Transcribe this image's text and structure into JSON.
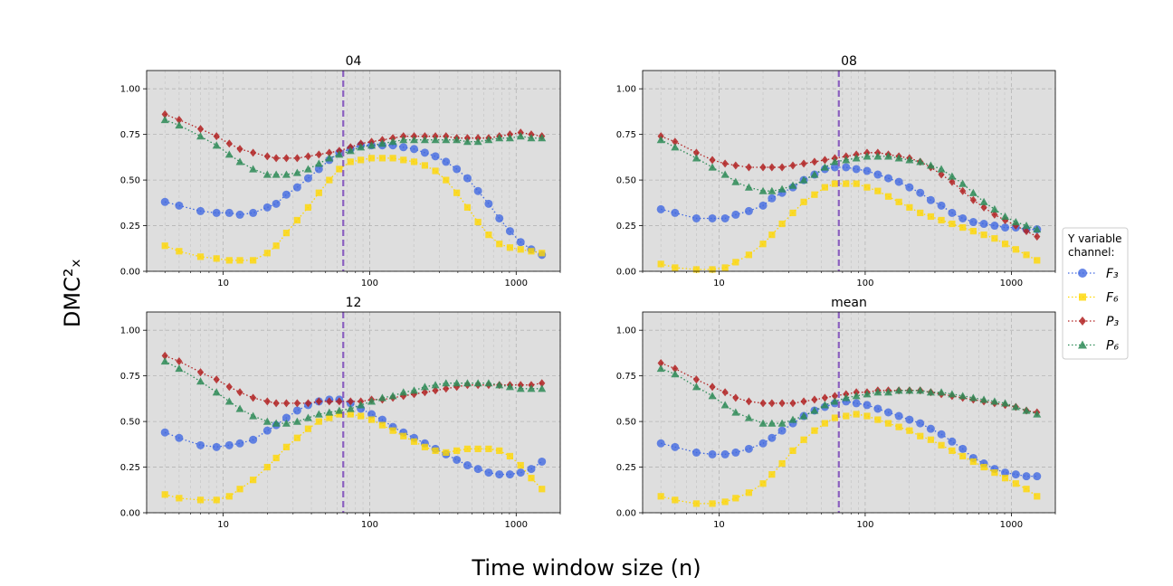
{
  "figure": {
    "supxlabel": "Time window size (n)",
    "supylabel": "DMC²ₓ"
  },
  "legend": {
    "title_line1": "Y variable",
    "title_line2": "channel:",
    "entries": [
      {
        "label": "F₃",
        "color": "#4169E1",
        "marker": "circle"
      },
      {
        "label": "F₆",
        "color": "#FFD700",
        "marker": "square"
      },
      {
        "label": "P₃",
        "color": "#B22222",
        "marker": "diamond"
      },
      {
        "label": "P₆",
        "color": "#2E8B57",
        "marker": "triangle"
      }
    ]
  },
  "chart_data": {
    "type": "line",
    "x_scale": "log",
    "xlim": [
      3,
      2000
    ],
    "ylim": [
      0,
      1.1
    ],
    "x_ticks": [
      10,
      100,
      1000
    ],
    "x_tick_labels": [
      "10",
      "100",
      "1000"
    ],
    "y_ticks": [
      0,
      0.25,
      0.5,
      0.75,
      1.0
    ],
    "y_tick_labels": [
      "0.00",
      "0.25",
      "0.50",
      "0.75",
      "1.00"
    ],
    "grid": true,
    "vline_x": 66,
    "vline_color": "#8B5FBF",
    "x": [
      4,
      5,
      7,
      9,
      11,
      13,
      16,
      20,
      23,
      27,
      32,
      38,
      45,
      53,
      62,
      74,
      87,
      103,
      122,
      144,
      170,
      201,
      238,
      281,
      332,
      393,
      465,
      549,
      649,
      768,
      907,
      1073,
      1268,
      1499
    ],
    "subplots": [
      {
        "title": "04",
        "series": [
          {
            "name": "F3",
            "values": [
              0.38,
              0.36,
              0.33,
              0.32,
              0.32,
              0.31,
              0.32,
              0.35,
              0.37,
              0.42,
              0.46,
              0.51,
              0.56,
              0.61,
              0.65,
              0.67,
              0.69,
              0.69,
              0.69,
              0.69,
              0.68,
              0.67,
              0.65,
              0.63,
              0.6,
              0.56,
              0.51,
              0.44,
              0.37,
              0.29,
              0.22,
              0.16,
              0.12,
              0.09
            ]
          },
          {
            "name": "F6",
            "values": [
              0.14,
              0.11,
              0.08,
              0.07,
              0.06,
              0.06,
              0.06,
              0.1,
              0.14,
              0.21,
              0.28,
              0.35,
              0.43,
              0.5,
              0.56,
              0.6,
              0.61,
              0.62,
              0.62,
              0.62,
              0.61,
              0.6,
              0.58,
              0.55,
              0.5,
              0.43,
              0.35,
              0.27,
              0.2,
              0.15,
              0.13,
              0.12,
              0.11,
              0.1
            ]
          },
          {
            "name": "P3",
            "values": [
              0.86,
              0.83,
              0.78,
              0.74,
              0.7,
              0.67,
              0.65,
              0.63,
              0.62,
              0.62,
              0.62,
              0.63,
              0.64,
              0.65,
              0.66,
              0.68,
              0.7,
              0.71,
              0.72,
              0.73,
              0.74,
              0.74,
              0.74,
              0.74,
              0.74,
              0.73,
              0.73,
              0.73,
              0.73,
              0.74,
              0.75,
              0.76,
              0.75,
              0.74
            ]
          },
          {
            "name": "P6",
            "values": [
              0.83,
              0.8,
              0.74,
              0.69,
              0.64,
              0.6,
              0.56,
              0.53,
              0.53,
              0.53,
              0.54,
              0.56,
              0.59,
              0.62,
              0.64,
              0.66,
              0.68,
              0.69,
              0.7,
              0.71,
              0.72,
              0.72,
              0.72,
              0.72,
              0.72,
              0.72,
              0.71,
              0.71,
              0.72,
              0.73,
              0.73,
              0.74,
              0.73,
              0.73
            ]
          }
        ]
      },
      {
        "title": "08",
        "series": [
          {
            "name": "F3",
            "values": [
              0.34,
              0.32,
              0.29,
              0.29,
              0.29,
              0.31,
              0.33,
              0.36,
              0.4,
              0.43,
              0.46,
              0.5,
              0.53,
              0.56,
              0.57,
              0.57,
              0.56,
              0.55,
              0.53,
              0.51,
              0.49,
              0.46,
              0.43,
              0.39,
              0.36,
              0.32,
              0.29,
              0.27,
              0.26,
              0.25,
              0.24,
              0.24,
              0.23,
              0.23
            ]
          },
          {
            "name": "F6",
            "values": [
              0.04,
              0.02,
              0.01,
              0.01,
              0.02,
              0.05,
              0.09,
              0.15,
              0.2,
              0.26,
              0.32,
              0.38,
              0.42,
              0.46,
              0.48,
              0.48,
              0.48,
              0.46,
              0.44,
              0.41,
              0.38,
              0.35,
              0.32,
              0.3,
              0.28,
              0.26,
              0.24,
              0.22,
              0.2,
              0.18,
              0.15,
              0.12,
              0.09,
              0.06
            ]
          },
          {
            "name": "P3",
            "values": [
              0.74,
              0.71,
              0.65,
              0.61,
              0.59,
              0.58,
              0.57,
              0.57,
              0.57,
              0.57,
              0.58,
              0.59,
              0.6,
              0.61,
              0.62,
              0.63,
              0.64,
              0.65,
              0.65,
              0.64,
              0.63,
              0.62,
              0.6,
              0.57,
              0.53,
              0.49,
              0.44,
              0.39,
              0.35,
              0.31,
              0.28,
              0.25,
              0.22,
              0.19
            ]
          },
          {
            "name": "P6",
            "values": [
              0.72,
              0.68,
              0.62,
              0.57,
              0.53,
              0.49,
              0.46,
              0.44,
              0.44,
              0.45,
              0.47,
              0.5,
              0.53,
              0.57,
              0.6,
              0.61,
              0.62,
              0.63,
              0.63,
              0.63,
              0.62,
              0.61,
              0.6,
              0.58,
              0.56,
              0.52,
              0.48,
              0.43,
              0.38,
              0.34,
              0.3,
              0.27,
              0.25,
              0.23
            ]
          }
        ]
      },
      {
        "title": "12",
        "series": [
          {
            "name": "F3",
            "values": [
              0.44,
              0.41,
              0.37,
              0.36,
              0.37,
              0.38,
              0.4,
              0.45,
              0.48,
              0.52,
              0.56,
              0.59,
              0.61,
              0.62,
              0.62,
              0.6,
              0.57,
              0.54,
              0.51,
              0.47,
              0.44,
              0.41,
              0.38,
              0.35,
              0.32,
              0.29,
              0.26,
              0.24,
              0.22,
              0.21,
              0.21,
              0.22,
              0.24,
              0.28
            ]
          },
          {
            "name": "F6",
            "values": [
              0.1,
              0.08,
              0.07,
              0.07,
              0.09,
              0.13,
              0.18,
              0.25,
              0.3,
              0.36,
              0.41,
              0.46,
              0.5,
              0.52,
              0.54,
              0.54,
              0.53,
              0.51,
              0.48,
              0.45,
              0.42,
              0.39,
              0.36,
              0.34,
              0.33,
              0.34,
              0.35,
              0.35,
              0.35,
              0.34,
              0.31,
              0.26,
              0.19,
              0.13
            ]
          },
          {
            "name": "P3",
            "values": [
              0.86,
              0.83,
              0.77,
              0.73,
              0.69,
              0.66,
              0.63,
              0.61,
              0.6,
              0.6,
              0.6,
              0.6,
              0.61,
              0.61,
              0.61,
              0.61,
              0.61,
              0.62,
              0.62,
              0.63,
              0.64,
              0.65,
              0.66,
              0.67,
              0.68,
              0.69,
              0.7,
              0.7,
              0.7,
              0.7,
              0.7,
              0.7,
              0.7,
              0.71
            ]
          },
          {
            "name": "P6",
            "values": [
              0.83,
              0.79,
              0.72,
              0.66,
              0.61,
              0.57,
              0.53,
              0.5,
              0.49,
              0.49,
              0.5,
              0.52,
              0.54,
              0.55,
              0.56,
              0.57,
              0.59,
              0.61,
              0.63,
              0.64,
              0.66,
              0.67,
              0.69,
              0.7,
              0.71,
              0.71,
              0.71,
              0.71,
              0.71,
              0.7,
              0.69,
              0.68,
              0.68,
              0.68
            ]
          }
        ]
      },
      {
        "title": "mean",
        "series": [
          {
            "name": "F3",
            "values": [
              0.38,
              0.36,
              0.33,
              0.32,
              0.32,
              0.33,
              0.35,
              0.38,
              0.41,
              0.45,
              0.49,
              0.53,
              0.56,
              0.58,
              0.6,
              0.61,
              0.6,
              0.59,
              0.57,
              0.55,
              0.53,
              0.51,
              0.49,
              0.46,
              0.43,
              0.39,
              0.35,
              0.3,
              0.27,
              0.24,
              0.22,
              0.21,
              0.2,
              0.2
            ]
          },
          {
            "name": "F6",
            "values": [
              0.09,
              0.07,
              0.05,
              0.05,
              0.06,
              0.08,
              0.11,
              0.16,
              0.21,
              0.27,
              0.34,
              0.4,
              0.45,
              0.49,
              0.52,
              0.53,
              0.54,
              0.53,
              0.51,
              0.49,
              0.47,
              0.45,
              0.42,
              0.4,
              0.37,
              0.34,
              0.31,
              0.28,
              0.25,
              0.22,
              0.19,
              0.16,
              0.13,
              0.09
            ]
          },
          {
            "name": "P3",
            "values": [
              0.82,
              0.79,
              0.73,
              0.69,
              0.66,
              0.63,
              0.61,
              0.6,
              0.6,
              0.6,
              0.6,
              0.61,
              0.62,
              0.63,
              0.64,
              0.65,
              0.66,
              0.66,
              0.67,
              0.67,
              0.67,
              0.67,
              0.67,
              0.66,
              0.65,
              0.64,
              0.63,
              0.62,
              0.61,
              0.6,
              0.59,
              0.58,
              0.56,
              0.55
            ]
          },
          {
            "name": "P6",
            "values": [
              0.79,
              0.76,
              0.69,
              0.64,
              0.59,
              0.55,
              0.52,
              0.49,
              0.49,
              0.49,
              0.51,
              0.53,
              0.56,
              0.59,
              0.61,
              0.63,
              0.64,
              0.65,
              0.66,
              0.66,
              0.67,
              0.67,
              0.67,
              0.66,
              0.66,
              0.65,
              0.64,
              0.63,
              0.62,
              0.61,
              0.6,
              0.58,
              0.56,
              0.54
            ]
          }
        ]
      }
    ]
  }
}
